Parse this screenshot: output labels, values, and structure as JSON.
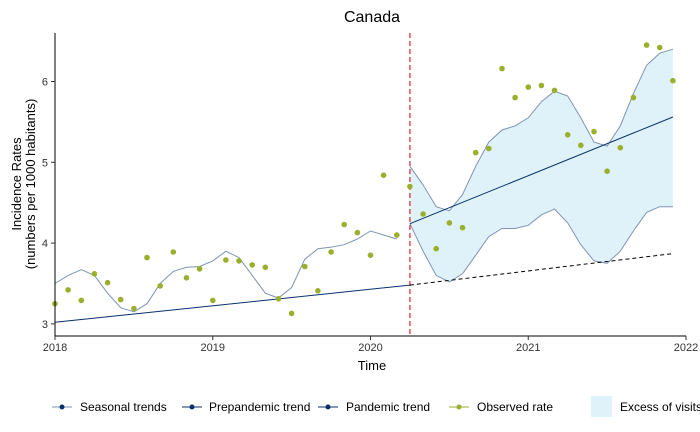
{
  "chart_data": {
    "type": "line",
    "title": "Canada",
    "xlabel": "Time",
    "ylabel": [
      "Incidence Rates",
      "(numbers per 1000 habitants)"
    ],
    "x_ticks": [
      "2018",
      "2019",
      "2020",
      "2021",
      "2022"
    ],
    "y_ticks": [
      "3",
      "4",
      "5",
      "6"
    ],
    "xlim": [
      "2018-01",
      "2022-01"
    ],
    "ylim": [
      2.85,
      6.6
    ],
    "pandemic_start": "2020-04",
    "series": [
      {
        "name": "Seasonal trends",
        "color": "#7f93b2",
        "x": [
          "2018-01",
          "2018-02",
          "2018-03",
          "2018-04",
          "2018-05",
          "2018-06",
          "2018-07",
          "2018-08",
          "2018-09",
          "2018-10",
          "2018-11",
          "2018-12",
          "2019-01",
          "2019-02",
          "2019-03",
          "2019-04",
          "2019-05",
          "2019-06",
          "2019-07",
          "2019-08",
          "2019-09",
          "2019-10",
          "2019-11",
          "2019-12",
          "2020-01",
          "2020-02",
          "2020-03"
        ],
        "values": [
          3.5,
          3.6,
          3.67,
          3.6,
          3.38,
          3.2,
          3.15,
          3.25,
          3.5,
          3.65,
          3.7,
          3.71,
          3.78,
          3.9,
          3.82,
          3.6,
          3.38,
          3.32,
          3.45,
          3.8,
          3.93,
          3.95,
          3.98,
          4.05,
          4.15,
          4.1,
          4.05
        ]
      },
      {
        "name": "Prepandemic trend",
        "color": "#08306b",
        "x": [
          "2018-01",
          "2020-04"
        ],
        "values": [
          3.02,
          3.48
        ]
      },
      {
        "name": "Pandemic trend",
        "color": "#08306b",
        "x": [
          "2020-04",
          "2021-12"
        ],
        "values": [
          4.24,
          5.56
        ]
      },
      {
        "name": "Observed rate",
        "color": "#9aaf2c",
        "x": [
          "2018-01",
          "2018-02",
          "2018-03",
          "2018-04",
          "2018-05",
          "2018-06",
          "2018-07",
          "2018-08",
          "2018-09",
          "2018-10",
          "2018-11",
          "2018-12",
          "2019-01",
          "2019-02",
          "2019-03",
          "2019-04",
          "2019-05",
          "2019-06",
          "2019-07",
          "2019-08",
          "2019-09",
          "2019-10",
          "2019-11",
          "2019-12",
          "2020-01",
          "2020-02",
          "2020-03",
          "2020-04",
          "2020-05",
          "2020-06",
          "2020-07",
          "2020-08",
          "2020-09",
          "2020-10",
          "2020-11",
          "2020-12",
          "2021-01",
          "2021-02",
          "2021-03",
          "2021-04",
          "2021-05",
          "2021-06",
          "2021-07",
          "2021-08",
          "2021-09",
          "2021-10",
          "2021-11",
          "2021-12"
        ],
        "values": [
          3.25,
          3.42,
          3.29,
          3.62,
          3.51,
          3.3,
          3.19,
          3.82,
          3.47,
          3.89,
          3.57,
          3.68,
          3.29,
          3.79,
          3.78,
          3.73,
          3.7,
          3.31,
          3.13,
          3.71,
          3.41,
          3.89,
          4.23,
          4.13,
          3.85,
          4.84,
          4.1,
          4.7,
          4.36,
          3.93,
          4.25,
          4.19,
          5.12,
          5.17,
          6.16,
          5.8,
          5.93,
          5.95,
          5.89,
          5.34,
          5.21,
          5.38,
          4.89,
          5.18,
          5.8,
          6.45,
          6.42,
          6.01
        ]
      }
    ],
    "projected_trend": {
      "x": [
        "2020-04",
        "2021-12"
      ],
      "values": [
        3.48,
        3.87
      ],
      "style": "dashed",
      "color": "#000000"
    },
    "excess_band": {
      "name": "Excess of visits",
      "color": "#dff2fa",
      "edge_color": "#7f93b2",
      "x": [
        "2020-04",
        "2020-05",
        "2020-06",
        "2020-07",
        "2020-08",
        "2020-09",
        "2020-10",
        "2020-11",
        "2020-12",
        "2021-01",
        "2021-02",
        "2021-03",
        "2021-04",
        "2021-05",
        "2021-06",
        "2021-07",
        "2021-08",
        "2021-09",
        "2021-10",
        "2021-11",
        "2021-12"
      ],
      "upper": [
        4.95,
        4.72,
        4.45,
        4.4,
        4.6,
        4.95,
        5.25,
        5.4,
        5.45,
        5.55,
        5.75,
        5.88,
        5.82,
        5.55,
        5.25,
        5.2,
        5.45,
        5.85,
        6.2,
        6.35,
        6.4
      ],
      "lower": [
        4.24,
        3.9,
        3.6,
        3.52,
        3.62,
        3.85,
        4.08,
        4.18,
        4.18,
        4.22,
        4.35,
        4.42,
        4.25,
        3.98,
        3.78,
        3.75,
        3.9,
        4.15,
        4.38,
        4.45,
        4.45
      ]
    },
    "legend": {
      "placement": "bottom",
      "items": [
        "Seasonal trends",
        "Prepandemic trend",
        "Pandemic trend",
        "Observed rate",
        "Excess of visits"
      ]
    },
    "grid": false
  }
}
